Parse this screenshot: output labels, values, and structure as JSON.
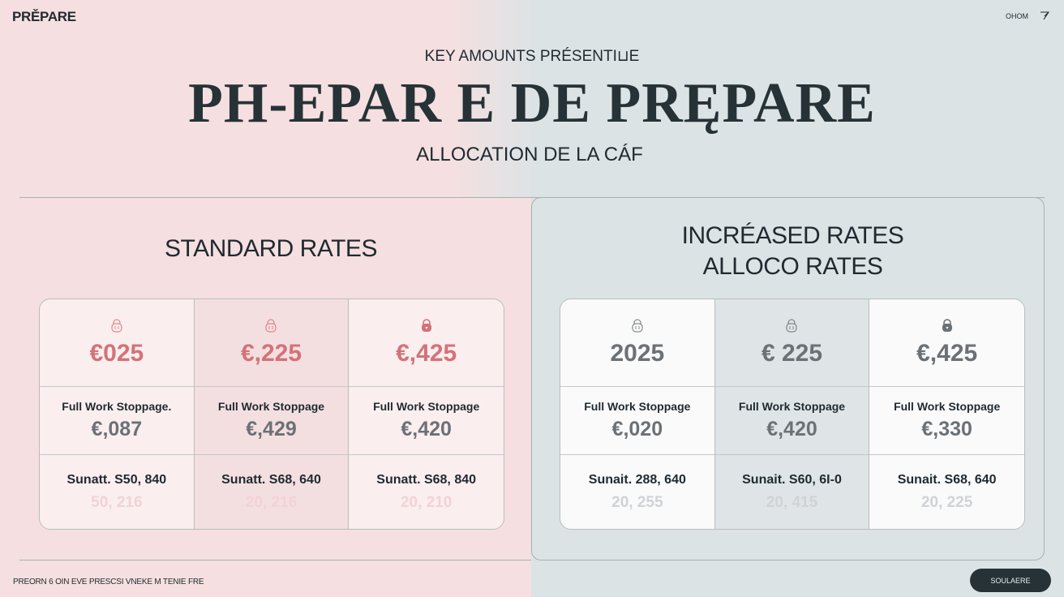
{
  "header": {
    "brand": "PRĚPARE",
    "menu_label": "OHOM",
    "icon": "send-icon"
  },
  "hero": {
    "kicker": "KEY AMOUNTS PRÉSENTI⊔E",
    "title": "PH-EPAR E DE PRĘPARE",
    "subtitle": "ALLOCATION DE LA CÁF"
  },
  "left": {
    "title": "STANDARD RATES",
    "accent": "#d27378",
    "columns": [
      {
        "icon": "lock-icon",
        "amount": "€025",
        "label": "Full Work Stoppage.",
        "rate": "€,087",
        "sun": "Sunatt. S50, 840",
        "faint": "50, 216"
      },
      {
        "icon": "lock-icon",
        "amount": "€,225",
        "label": "Full Work Stoppage",
        "rate": "€,429",
        "sun": "Sunatt. S68, 640",
        "faint": "20, 216"
      },
      {
        "icon": "lock-filled-icon",
        "amount": "€,425",
        "label": "Full Work Stoppage",
        "rate": "€,420",
        "sun": "Sunatt. S68, 840",
        "faint": "20, 210"
      }
    ]
  },
  "right": {
    "title_line1": "INCRÉASED RATES",
    "title_line2": "ALLOCO RATES",
    "columns": [
      {
        "icon": "lock-icon",
        "amount": "2025",
        "label": "Full Work Stoppage",
        "rate": "€,020",
        "sun": "Sunait. 288, 640",
        "faint": "20, 255"
      },
      {
        "icon": "lock-icon",
        "amount": "€ 225",
        "label": "Full Work Stoppage",
        "rate": "€,420",
        "sun": "Sunait. S60, 6I-0",
        "faint": "20, 415"
      },
      {
        "icon": "lock-filled-icon",
        "amount": "€,425",
        "label": "Full Work Stoppage",
        "rate": "€,330",
        "sun": "Sunait. S68, 640",
        "faint": "20, 225"
      }
    ]
  },
  "footer": {
    "text": "PREORN 6 OIN EVE PRESCSI VNEKE M TENIE FRE",
    "button": "SOULAERE"
  }
}
